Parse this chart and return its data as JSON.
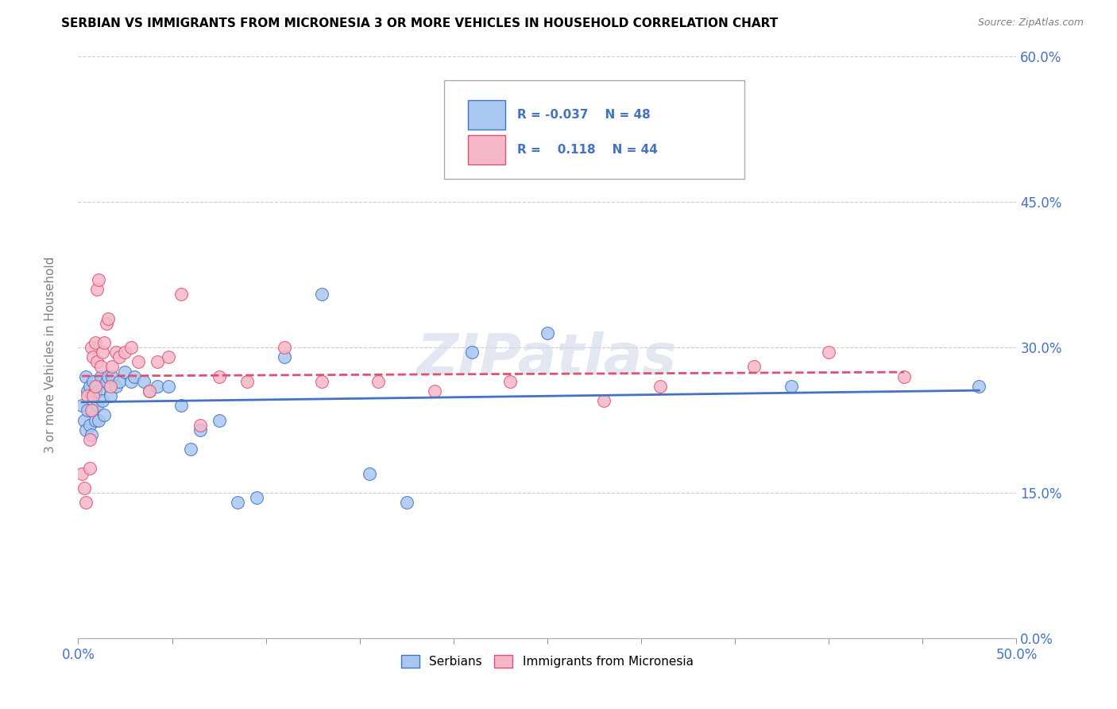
{
  "title": "SERBIAN VS IMMIGRANTS FROM MICRONESIA 3 OR MORE VEHICLES IN HOUSEHOLD CORRELATION CHART",
  "source": "Source: ZipAtlas.com",
  "xlim": [
    0,
    0.5
  ],
  "ylim": [
    0,
    0.6
  ],
  "ylabel": "3 or more Vehicles in Household",
  "legend_label1": "Serbians",
  "legend_label2": "Immigrants from Micronesia",
  "r1": "-0.037",
  "n1": "48",
  "r2": "0.118",
  "n2": "44",
  "color_blue": "#A8C8F0",
  "color_pink": "#F5B8C8",
  "line_color_blue": "#4472C4",
  "line_color_pink": "#E05070",
  "watermark": "ZIPatlas",
  "serbian_x": [
    0.002,
    0.003,
    0.004,
    0.004,
    0.005,
    0.005,
    0.006,
    0.006,
    0.007,
    0.007,
    0.008,
    0.008,
    0.009,
    0.009,
    0.01,
    0.01,
    0.011,
    0.011,
    0.012,
    0.013,
    0.014,
    0.015,
    0.016,
    0.017,
    0.018,
    0.02,
    0.022,
    0.025,
    0.028,
    0.03,
    0.035,
    0.038,
    0.042,
    0.048,
    0.055,
    0.06,
    0.065,
    0.075,
    0.085,
    0.095,
    0.11,
    0.13,
    0.155,
    0.175,
    0.21,
    0.25,
    0.38,
    0.48
  ],
  "serbian_y": [
    0.24,
    0.225,
    0.215,
    0.27,
    0.235,
    0.255,
    0.22,
    0.26,
    0.21,
    0.25,
    0.235,
    0.265,
    0.225,
    0.255,
    0.24,
    0.26,
    0.225,
    0.255,
    0.27,
    0.245,
    0.23,
    0.265,
    0.27,
    0.25,
    0.27,
    0.26,
    0.265,
    0.275,
    0.265,
    0.27,
    0.265,
    0.255,
    0.26,
    0.26,
    0.24,
    0.195,
    0.215,
    0.225,
    0.14,
    0.145,
    0.29,
    0.355,
    0.17,
    0.14,
    0.295,
    0.315,
    0.26,
    0.26
  ],
  "micronesia_x": [
    0.002,
    0.003,
    0.004,
    0.005,
    0.006,
    0.006,
    0.007,
    0.007,
    0.008,
    0.008,
    0.009,
    0.009,
    0.01,
    0.01,
    0.011,
    0.012,
    0.013,
    0.014,
    0.015,
    0.016,
    0.017,
    0.018,
    0.02,
    0.022,
    0.025,
    0.028,
    0.032,
    0.038,
    0.042,
    0.048,
    0.055,
    0.065,
    0.075,
    0.09,
    0.11,
    0.13,
    0.16,
    0.19,
    0.23,
    0.28,
    0.31,
    0.36,
    0.4,
    0.44
  ],
  "micronesia_y": [
    0.17,
    0.155,
    0.14,
    0.25,
    0.205,
    0.175,
    0.235,
    0.3,
    0.29,
    0.25,
    0.26,
    0.305,
    0.285,
    0.36,
    0.37,
    0.28,
    0.295,
    0.305,
    0.325,
    0.33,
    0.26,
    0.28,
    0.295,
    0.29,
    0.295,
    0.3,
    0.285,
    0.255,
    0.285,
    0.29,
    0.355,
    0.22,
    0.27,
    0.265,
    0.3,
    0.265,
    0.265,
    0.255,
    0.265,
    0.245,
    0.26,
    0.28,
    0.295,
    0.27
  ]
}
